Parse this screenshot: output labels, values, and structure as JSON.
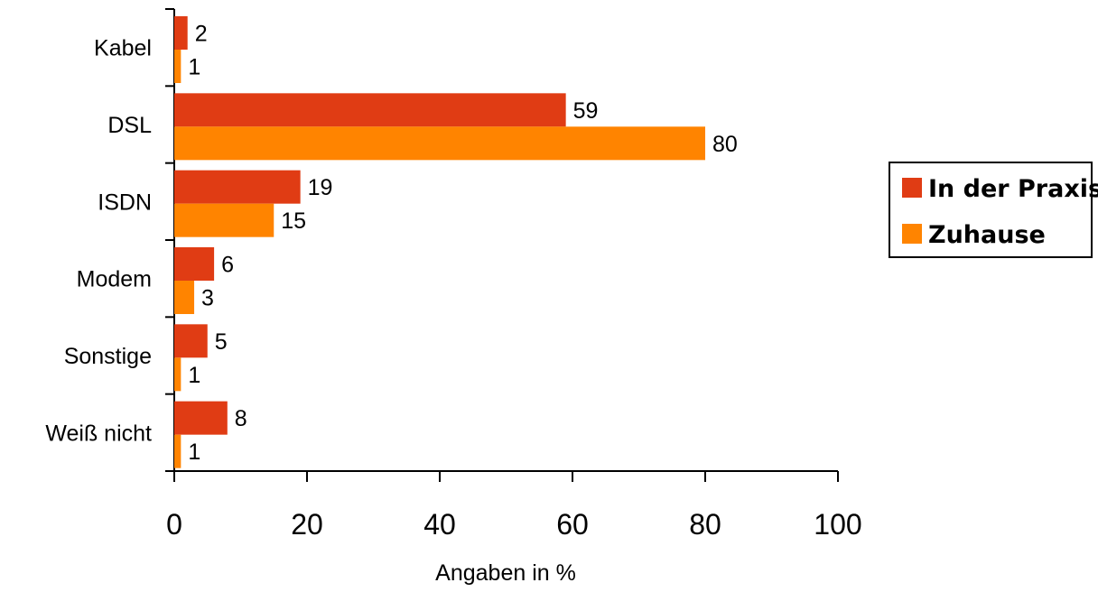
{
  "chart_data": {
    "type": "bar",
    "orientation": "horizontal",
    "categories": [
      "Kabel",
      "DSL",
      "ISDN",
      "Modem",
      "Sonstige",
      "Weiß nicht"
    ],
    "series": [
      {
        "name": "In der Praxis",
        "color": "#e03c14",
        "values": [
          2,
          59,
          19,
          6,
          5,
          8
        ]
      },
      {
        "name": "Zuhause",
        "color": "#ff8400",
        "values": [
          1,
          80,
          15,
          3,
          1,
          1
        ]
      }
    ],
    "xlabel": "Angaben in %",
    "xlim": [
      0,
      100
    ],
    "xticks": [
      0,
      20,
      40,
      60,
      80,
      100
    ],
    "grid": false,
    "legend_position": "right"
  }
}
